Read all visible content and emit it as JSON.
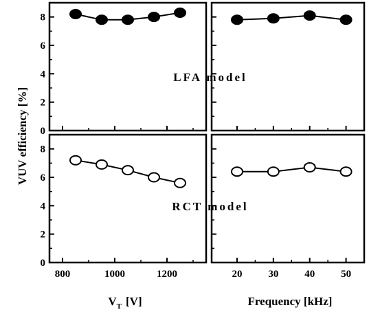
{
  "chart_data": [
    {
      "panel": "top-left",
      "type": "scatter",
      "annotation": "LFA model",
      "x": [
        850,
        950,
        1050,
        1150,
        1250
      ],
      "y": [
        8.2,
        7.8,
        7.8,
        8.0,
        8.3
      ],
      "marker": "filled-circle",
      "xlim": [
        750,
        1350
      ],
      "ylim": [
        0,
        9
      ]
    },
    {
      "panel": "top-right",
      "type": "scatter",
      "x": [
        20,
        30,
        40,
        50
      ],
      "y": [
        7.8,
        7.9,
        8.1,
        7.8
      ],
      "marker": "filled-circle",
      "xlim": [
        13,
        55
      ],
      "ylim": [
        0,
        9
      ]
    },
    {
      "panel": "bottom-left",
      "type": "scatter",
      "annotation": "RCT model",
      "x": [
        850,
        950,
        1050,
        1150,
        1250
      ],
      "y": [
        7.2,
        6.9,
        6.5,
        6.0,
        5.6
      ],
      "marker": "open-circle",
      "xlim": [
        750,
        1350
      ],
      "ylim": [
        0,
        9
      ]
    },
    {
      "panel": "bottom-right",
      "type": "scatter",
      "x": [
        20,
        30,
        40,
        50
      ],
      "y": [
        6.4,
        6.4,
        6.7,
        6.4
      ],
      "marker": "open-circle",
      "xlim": [
        13,
        55
      ],
      "ylim": [
        0,
        9
      ]
    }
  ],
  "axes": {
    "ylabel": "VUV efficiency [%]",
    "left_xlabel_main": "V",
    "left_xlabel_sub": "T",
    "left_xlabel_unit": "[V]",
    "right_xlabel": "Frequency [kHz]",
    "y_ticks": [
      "0",
      "2",
      "4",
      "6",
      "8"
    ],
    "left_x_ticks": [
      "800",
      "1000",
      "1200"
    ],
    "right_x_ticks": [
      "20",
      "30",
      "40",
      "50"
    ]
  }
}
